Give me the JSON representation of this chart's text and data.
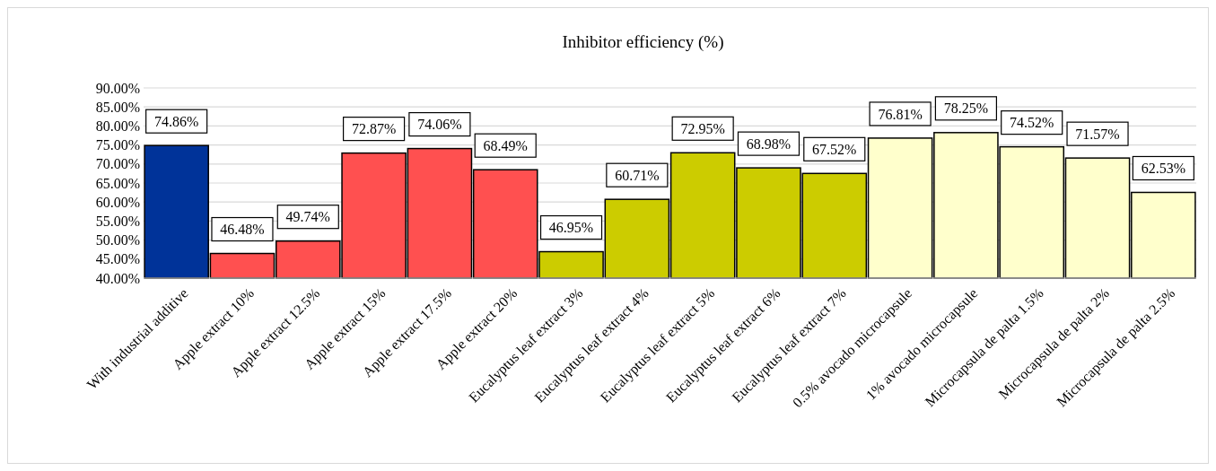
{
  "chart_data": {
    "type": "bar",
    "title": "Inhibitor efficiency (%)",
    "categories": [
      "With industrial additive",
      "Apple extract 10%",
      "Apple extract 12.5%",
      "Apple extract 15%",
      "Apple extract 17.5%",
      "Apple extract 20%",
      "Eucalyptus leaf extract 3%",
      "Eucalyptus leaf extract 4%",
      "Eucalyptus leaf extract 5%",
      "Eucalyptus leaf extract 6%",
      "Eucalyptus leaf extract 7%",
      "0.5% avocado microcapsule",
      "1% avocado microcapsule",
      "Microcapsula de palta 1.5%",
      "Microcapsula de palta 2%",
      "Microcapsula de palta 2.5%"
    ],
    "values": [
      74.86,
      46.48,
      49.74,
      72.87,
      74.06,
      68.49,
      46.95,
      60.71,
      72.95,
      68.98,
      67.52,
      76.81,
      78.25,
      74.52,
      71.57,
      62.53
    ],
    "value_labels": [
      "74.86%",
      "46.48%",
      "49.74%",
      "72.87%",
      "74.06%",
      "68.49%",
      "46.95%",
      "60.71%",
      "72.95%",
      "68.98%",
      "67.52%",
      "76.81%",
      "78.25%",
      "74.52%",
      "71.57%",
      "62.53%"
    ],
    "colors": [
      "#003399",
      "#ff5050",
      "#ff5050",
      "#ff5050",
      "#ff5050",
      "#ff5050",
      "#cccc00",
      "#cccc00",
      "#cccc00",
      "#cccc00",
      "#cccc00",
      "#ffffcc",
      "#ffffcc",
      "#ffffcc",
      "#ffffcc",
      "#ffffcc"
    ],
    "ylim": [
      40,
      90
    ],
    "yticks": [
      {
        "value": 40,
        "label": "40.00%"
      },
      {
        "value": 45,
        "label": "45.00%"
      },
      {
        "value": 50,
        "label": "50.00%"
      },
      {
        "value": 55,
        "label": "55.00%"
      },
      {
        "value": 60,
        "label": "60.00%"
      },
      {
        "value": 65,
        "label": "65.00%"
      },
      {
        "value": 70,
        "label": "70.00%"
      },
      {
        "value": 75,
        "label": "75.00%"
      },
      {
        "value": 80,
        "label": "80.00%"
      },
      {
        "value": 85,
        "label": "85.00%"
      },
      {
        "value": 90,
        "label": "90.00%"
      }
    ],
    "grid": "y"
  }
}
